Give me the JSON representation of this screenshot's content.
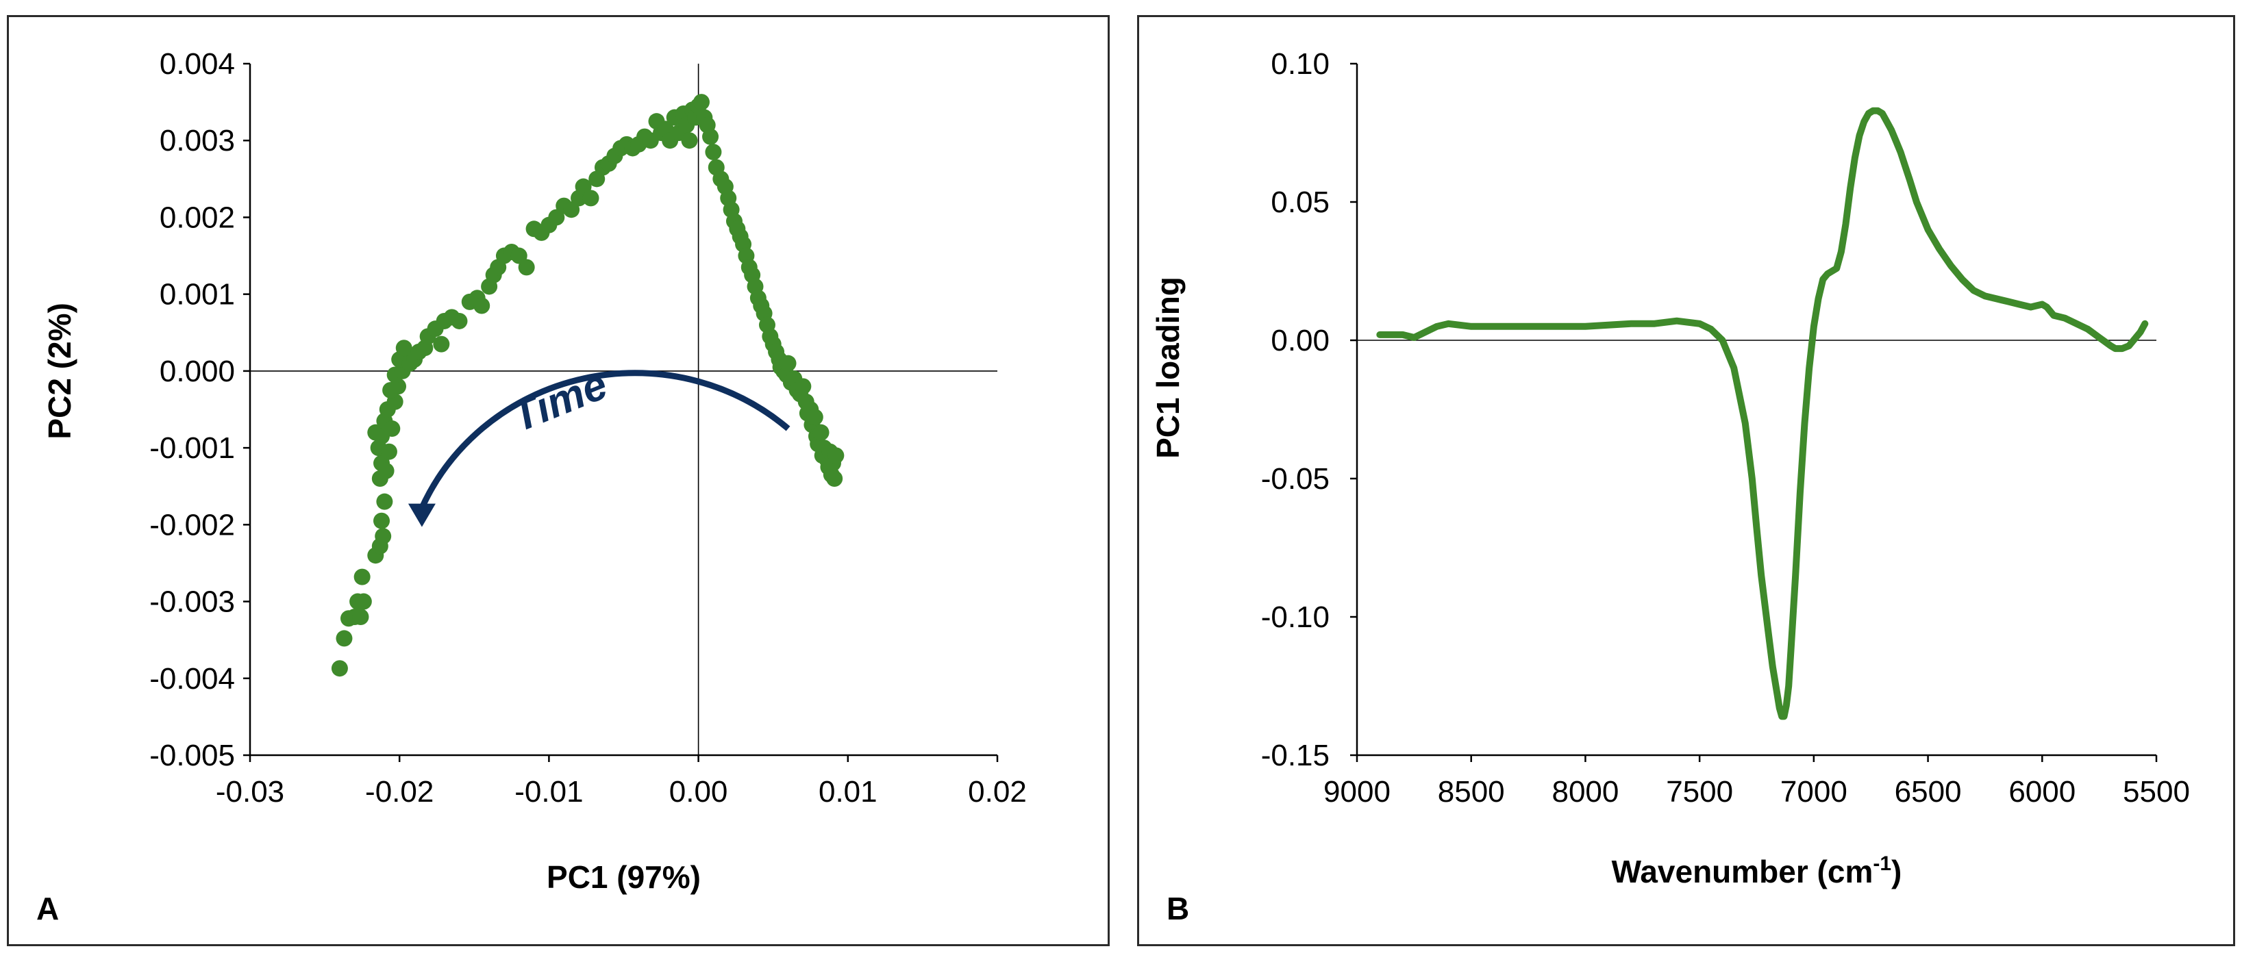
{
  "chart_data": [
    {
      "type": "scatter",
      "panel_label": "A",
      "xlabel": "PC1 (97%)",
      "ylabel": "PC2 (2%)",
      "xlim": [
        -0.03,
        0.02
      ],
      "ylim": [
        -0.005,
        0.004
      ],
      "xticks": [
        -0.03,
        -0.02,
        -0.01,
        0.0,
        0.01,
        0.02
      ],
      "xtick_labels": [
        "-0.03",
        "-0.02",
        "-0.01",
        "0.00",
        "0.01",
        "0.02"
      ],
      "yticks": [
        0.004,
        0.003,
        0.002,
        0.001,
        0.0,
        -0.001,
        -0.002,
        -0.003,
        -0.004,
        -0.005
      ],
      "ytick_labels": [
        "0.004",
        "0.003",
        "0.002",
        "0.001",
        "0.000",
        "-0.001",
        "-0.002",
        "-0.003",
        "-0.004",
        "-0.005"
      ],
      "annotation": "Time",
      "points": [
        [
          -0.024,
          -0.00387
        ],
        [
          -0.0237,
          -0.00348
        ],
        [
          -0.0234,
          -0.00322
        ],
        [
          -0.023,
          -0.0032
        ],
        [
          -0.0228,
          -0.003
        ],
        [
          -0.0226,
          -0.0032
        ],
        [
          -0.0225,
          -0.00268
        ],
        [
          -0.0224,
          -0.003
        ],
        [
          -0.0216,
          -0.0024
        ],
        [
          -0.0213,
          -0.00228
        ],
        [
          -0.0211,
          -0.00215
        ],
        [
          -0.0212,
          -0.00195
        ],
        [
          -0.021,
          -0.0017
        ],
        [
          -0.0213,
          -0.0014
        ],
        [
          -0.0212,
          -0.0012
        ],
        [
          -0.0209,
          -0.0013
        ],
        [
          -0.0214,
          -0.001
        ],
        [
          -0.0207,
          -0.00105
        ],
        [
          -0.0212,
          -0.00085
        ],
        [
          -0.0216,
          -0.0008
        ],
        [
          -0.021,
          -0.00065
        ],
        [
          -0.0205,
          -0.00075
        ],
        [
          -0.0208,
          -0.0005
        ],
        [
          -0.0203,
          -0.0004
        ],
        [
          -0.0206,
          -0.00025
        ],
        [
          -0.0201,
          -0.0002
        ],
        [
          -0.0203,
          -5e-05
        ],
        [
          -0.0198,
          0.0
        ],
        [
          -0.02,
          0.00015
        ],
        [
          -0.0196,
          0.0002
        ],
        [
          -0.0193,
          0.0001
        ],
        [
          -0.019,
          0.00015
        ],
        [
          -0.0197,
          0.0003
        ],
        [
          -0.0187,
          0.00025
        ],
        [
          -0.0183,
          0.0003
        ],
        [
          -0.0181,
          0.00045
        ],
        [
          -0.0176,
          0.00055
        ],
        [
          -0.0172,
          0.00035
        ],
        [
          -0.017,
          0.00065
        ],
        [
          -0.0165,
          0.0007
        ],
        [
          -0.016,
          0.00065
        ],
        [
          -0.0153,
          0.0009
        ],
        [
          -0.0148,
          0.00095
        ],
        [
          -0.0145,
          0.00085
        ],
        [
          -0.014,
          0.0011
        ],
        [
          -0.0137,
          0.00125
        ],
        [
          -0.0134,
          0.00135
        ],
        [
          -0.013,
          0.0015
        ],
        [
          -0.0125,
          0.00155
        ],
        [
          -0.012,
          0.0015
        ],
        [
          -0.0115,
          0.00135
        ],
        [
          -0.011,
          0.00185
        ],
        [
          -0.0105,
          0.0018
        ],
        [
          -0.01,
          0.0019
        ],
        [
          -0.0095,
          0.002
        ],
        [
          -0.009,
          0.00215
        ],
        [
          -0.0085,
          0.0021
        ],
        [
          -0.008,
          0.00225
        ],
        [
          -0.0077,
          0.0024
        ],
        [
          -0.0072,
          0.00225
        ],
        [
          -0.0068,
          0.0025
        ],
        [
          -0.0064,
          0.00265
        ],
        [
          -0.006,
          0.0027
        ],
        [
          -0.0056,
          0.0028
        ],
        [
          -0.0052,
          0.0029
        ],
        [
          -0.0048,
          0.00295
        ],
        [
          -0.0044,
          0.0029
        ],
        [
          -0.004,
          0.00295
        ],
        [
          -0.0036,
          0.00305
        ],
        [
          -0.0032,
          0.003
        ],
        [
          -0.0028,
          0.00325
        ],
        [
          -0.0025,
          0.0031
        ],
        [
          -0.0022,
          0.00315
        ],
        [
          -0.0019,
          0.003
        ],
        [
          -0.0016,
          0.0033
        ],
        [
          -0.0013,
          0.0031
        ],
        [
          -0.001,
          0.00335
        ],
        [
          -0.0008,
          0.0032
        ],
        [
          -0.0006,
          0.003
        ],
        [
          -0.0004,
          0.0034
        ],
        [
          -0.0002,
          0.0033
        ],
        [
          0.0,
          0.00345
        ],
        [
          0.0002,
          0.0035
        ],
        [
          0.0004,
          0.0033
        ],
        [
          0.0006,
          0.0032
        ],
        [
          0.0008,
          0.00305
        ],
        [
          0.001,
          0.00285
        ],
        [
          0.0012,
          0.00265
        ],
        [
          0.0015,
          0.0025
        ],
        [
          0.0018,
          0.0024
        ],
        [
          0.002,
          0.00225
        ],
        [
          0.0022,
          0.0021
        ],
        [
          0.0024,
          0.00195
        ],
        [
          0.0026,
          0.00185
        ],
        [
          0.0028,
          0.00175
        ],
        [
          0.003,
          0.00165
        ],
        [
          0.0032,
          0.0015
        ],
        [
          0.0034,
          0.00135
        ],
        [
          0.0036,
          0.00125
        ],
        [
          0.0038,
          0.0011
        ],
        [
          0.004,
          0.00095
        ],
        [
          0.0042,
          0.00085
        ],
        [
          0.0044,
          0.00075
        ],
        [
          0.0046,
          0.0006
        ],
        [
          0.0048,
          0.00045
        ],
        [
          0.005,
          0.00035
        ],
        [
          0.0052,
          0.00025
        ],
        [
          0.0054,
          0.00015
        ],
        [
          0.0055,
          5e-05
        ],
        [
          0.0057,
          0.0
        ],
        [
          0.0059,
          -5e-05
        ],
        [
          0.006,
          0.0001
        ],
        [
          0.0062,
          -0.00015
        ],
        [
          0.0064,
          -0.0001
        ],
        [
          0.0066,
          -0.00025
        ],
        [
          0.0068,
          -0.0003
        ],
        [
          0.007,
          -0.0002
        ],
        [
          0.0072,
          -0.0004
        ],
        [
          0.0073,
          -0.00055
        ],
        [
          0.0075,
          -0.0005
        ],
        [
          0.0076,
          -0.0007
        ],
        [
          0.0078,
          -0.0006
        ],
        [
          0.0079,
          -0.00085
        ],
        [
          0.008,
          -0.00095
        ],
        [
          0.0082,
          -0.0008
        ],
        [
          0.0083,
          -0.0011
        ],
        [
          0.0084,
          -0.001
        ],
        [
          0.0086,
          -0.00115
        ],
        [
          0.0087,
          -0.00125
        ],
        [
          0.0088,
          -0.00105
        ],
        [
          0.0089,
          -0.00135
        ],
        [
          0.009,
          -0.0012
        ],
        [
          0.0091,
          -0.0014
        ],
        [
          0.0092,
          -0.0011
        ]
      ]
    },
    {
      "type": "line",
      "panel_label": "B",
      "xlabel": "Wavenumber (cm",
      "xlabel_sup": "-1",
      "xlabel_close": ")",
      "ylabel": "PC1 loading",
      "xlim": [
        9000,
        5500
      ],
      "ylim": [
        -0.15,
        0.1
      ],
      "xticks": [
        9000,
        8500,
        8000,
        7500,
        7000,
        6500,
        6000,
        5500
      ],
      "xtick_labels": [
        "9000",
        "8500",
        "8000",
        "7500",
        "7000",
        "6500",
        "6000",
        "5500"
      ],
      "yticks": [
        0.1,
        0.05,
        0.0,
        -0.05,
        -0.1,
        -0.15
      ],
      "ytick_labels": [
        "0.10",
        "0.05",
        "0.00",
        "-0.05",
        "-0.10",
        "-0.15"
      ],
      "x": [
        8900,
        8800,
        8750,
        8700,
        8650,
        8600,
        8500,
        8400,
        8200,
        8000,
        7800,
        7700,
        7600,
        7500,
        7450,
        7400,
        7350,
        7300,
        7270,
        7250,
        7230,
        7200,
        7180,
        7160,
        7150,
        7140,
        7130,
        7120,
        7110,
        7100,
        7080,
        7060,
        7040,
        7020,
        7000,
        6980,
        6960,
        6940,
        6920,
        6900,
        6880,
        6860,
        6840,
        6820,
        6800,
        6780,
        6760,
        6740,
        6720,
        6700,
        6680,
        6660,
        6640,
        6620,
        6600,
        6580,
        6550,
        6500,
        6450,
        6400,
        6350,
        6300,
        6250,
        6200,
        6150,
        6100,
        6050,
        6000,
        5980,
        5950,
        5900,
        5850,
        5800,
        5750,
        5700,
        5680,
        5650,
        5620,
        5600,
        5570,
        5550
      ],
      "y": [
        0.002,
        0.002,
        0.001,
        0.003,
        0.005,
        0.006,
        0.005,
        0.005,
        0.005,
        0.005,
        0.006,
        0.006,
        0.007,
        0.006,
        0.004,
        0.0,
        -0.01,
        -0.03,
        -0.05,
        -0.068,
        -0.085,
        -0.105,
        -0.118,
        -0.128,
        -0.133,
        -0.136,
        -0.136,
        -0.132,
        -0.125,
        -0.112,
        -0.085,
        -0.055,
        -0.03,
        -0.01,
        0.005,
        0.015,
        0.022,
        0.024,
        0.025,
        0.026,
        0.032,
        0.042,
        0.055,
        0.066,
        0.074,
        0.079,
        0.082,
        0.083,
        0.083,
        0.082,
        0.079,
        0.076,
        0.072,
        0.068,
        0.063,
        0.058,
        0.05,
        0.04,
        0.033,
        0.027,
        0.022,
        0.018,
        0.016,
        0.015,
        0.014,
        0.013,
        0.012,
        0.013,
        0.012,
        0.009,
        0.008,
        0.006,
        0.004,
        0.001,
        -0.002,
        -0.003,
        -0.003,
        -0.002,
        0.0,
        0.003,
        0.006
      ]
    }
  ],
  "colors": {
    "series": "#3f8a2b",
    "arrow": "#0e2f5e",
    "axis": "#000000",
    "frame": "#2b2b2b"
  }
}
